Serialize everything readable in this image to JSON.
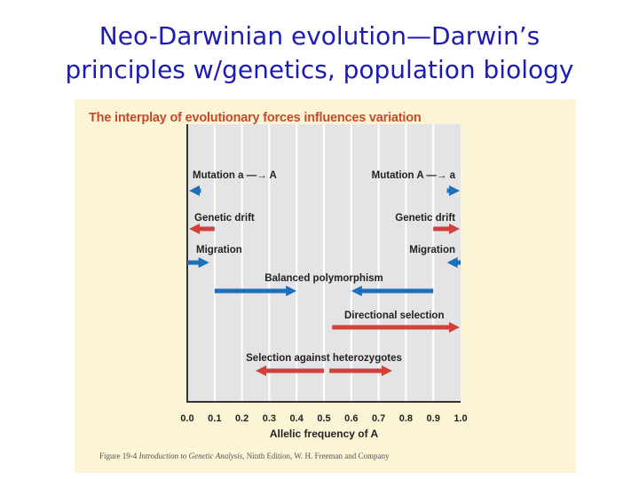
{
  "slide": {
    "title_line1": "Neo-Darwinian evolution—Darwin’s",
    "title_line2": "principles w/genetics, population biology"
  },
  "figure": {
    "header": "The interplay of evolutionary forces influences variation",
    "credit_prefix": "Figure 19-4",
    "credit_italic": "Introduction to Genetic Analysis,",
    "credit_suffix": "Ninth Edition, W. H. Freeman and Company"
  },
  "colors": {
    "title": "#1c1cb4",
    "header": "#c8482a",
    "blue_arrow": "#1d6fb8",
    "red_arrow": "#d1403a",
    "plot_bg": "#e4e4e7",
    "plot_grid": "#ffffff",
    "figure_bg": "#fbf5d6"
  },
  "chart_data": {
    "type": "diagram",
    "xlabel": "Allelic frequency of A",
    "x_ticks": [
      "0.0",
      "0.1",
      "0.2",
      "0.3",
      "0.4",
      "0.5",
      "0.6",
      "0.7",
      "0.8",
      "0.9",
      "1.0"
    ],
    "xlim": [
      0.0,
      1.0
    ],
    "forces": [
      {
        "label": "Mutation a —→ A",
        "color": "blue",
        "arrows": [
          {
            "from": 0.05,
            "to": 0.0
          }
        ]
      },
      {
        "label": "Mutation A —→ a",
        "color": "blue",
        "arrows": [
          {
            "from": 0.95,
            "to": 1.0
          }
        ]
      },
      {
        "label": "Genetic drift",
        "color": "red",
        "arrows": [
          {
            "from": 0.1,
            "to": 0.0
          }
        ]
      },
      {
        "label": "Genetic drift",
        "color": "red",
        "arrows": [
          {
            "from": 0.9,
            "to": 1.0
          }
        ]
      },
      {
        "label": "Migration",
        "color": "blue",
        "arrows": [
          {
            "from": 0.0,
            "to": 0.08
          }
        ]
      },
      {
        "label": "Migration",
        "color": "blue",
        "arrows": [
          {
            "from": 1.0,
            "to": 0.95
          }
        ]
      },
      {
        "label": "Balanced polymorphism",
        "color": "blue",
        "arrows": [
          {
            "from": 0.1,
            "to": 0.4
          },
          {
            "from": 0.9,
            "to": 0.6
          }
        ]
      },
      {
        "label": "Directional selection",
        "color": "red",
        "arrows": [
          {
            "from": 0.53,
            "to": 1.0
          }
        ]
      },
      {
        "label": "Selection against heterozygotes",
        "color": "red",
        "arrows": [
          {
            "from": 0.5,
            "to": 0.25
          },
          {
            "from": 0.52,
            "to": 0.75
          }
        ]
      }
    ]
  }
}
